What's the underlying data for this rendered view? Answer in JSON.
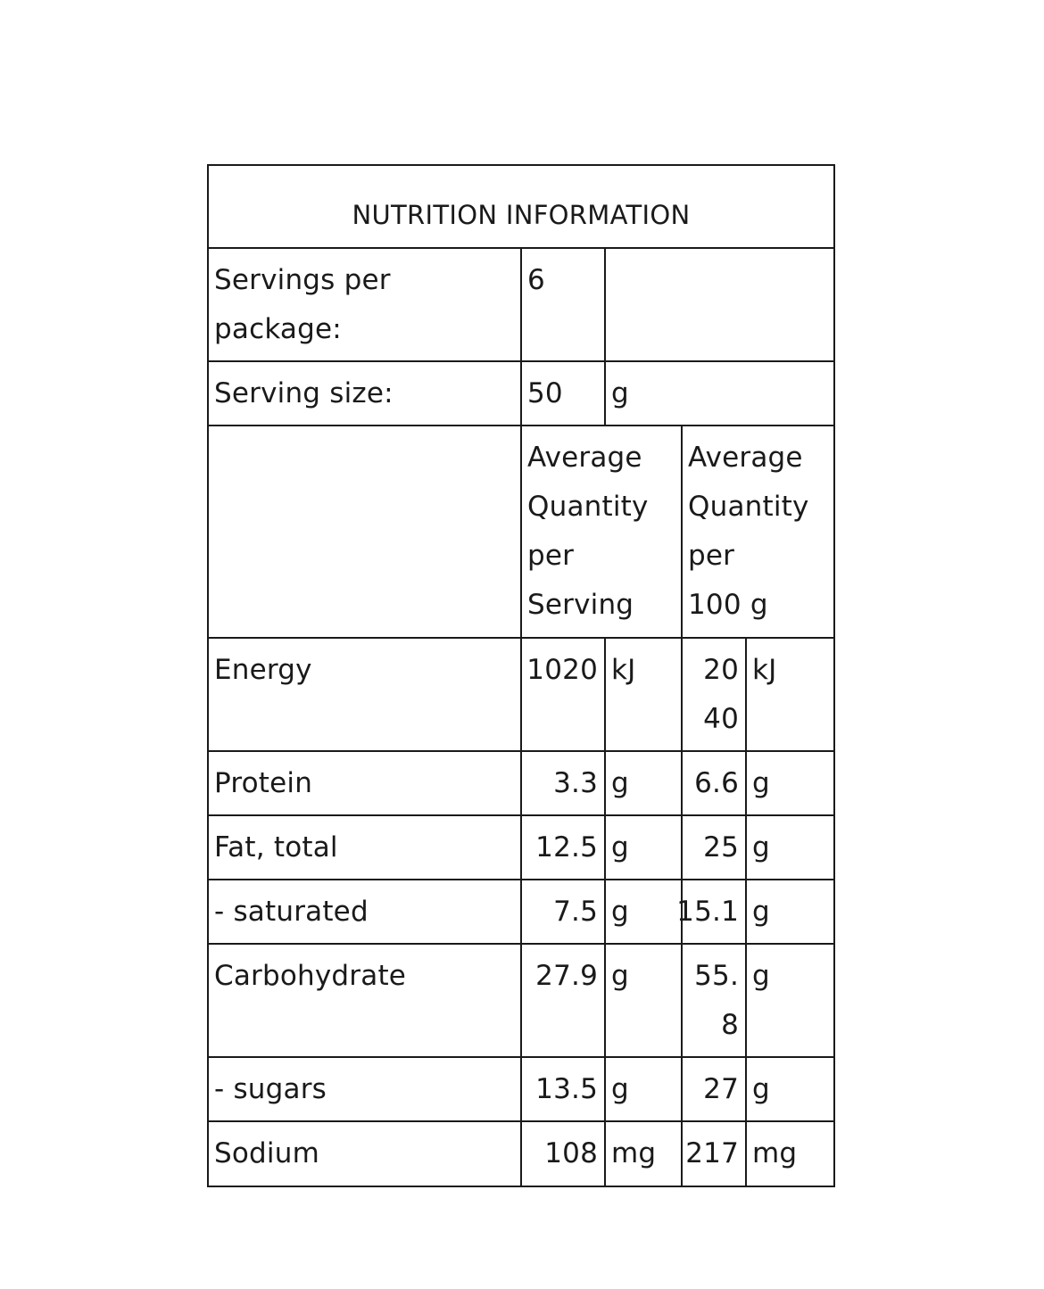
{
  "panel": {
    "title": "NUTRITION INFORMATION"
  },
  "servings": {
    "label_line1": "Servings per",
    "label_line2": "package:",
    "value": "6"
  },
  "serving_size": {
    "label": "Serving size:",
    "value": "50",
    "unit": "g"
  },
  "headers": {
    "per_serving": [
      "Average",
      "Quantity",
      "per",
      "Serving"
    ],
    "per_100g": [
      "Average",
      "Quantity",
      "per",
      "100 g"
    ]
  },
  "nutrients": [
    {
      "name": "Energy",
      "serving_value": "1020",
      "serving_unit": "kJ",
      "per100_value_line1": "20",
      "per100_value_line2": "40",
      "per100_unit": "kJ"
    },
    {
      "name": "Protein",
      "serving_value": "3.3",
      "serving_unit": "g",
      "per100_value": "6.6",
      "per100_unit": "g"
    },
    {
      "name": "Fat, total",
      "serving_value": "12.5",
      "serving_unit": "g",
      "per100_value": "25",
      "per100_unit": "g"
    },
    {
      "name": "- saturated",
      "serving_value": "7.5",
      "serving_unit": "g",
      "per100_value": "15.1",
      "per100_unit": "g"
    },
    {
      "name": "Carbohydrate",
      "serving_value": "27.9",
      "serving_unit": "g",
      "per100_value_line1": "55.",
      "per100_value_line2": "8",
      "per100_unit": "g"
    },
    {
      "name": "- sugars",
      "serving_value": "13.5",
      "serving_unit": "g",
      "per100_value": "27",
      "per100_unit": "g"
    },
    {
      "name": "Sodium",
      "serving_value": "108",
      "serving_unit": "mg",
      "per100_value": "217",
      "per100_unit": "mg"
    }
  ]
}
